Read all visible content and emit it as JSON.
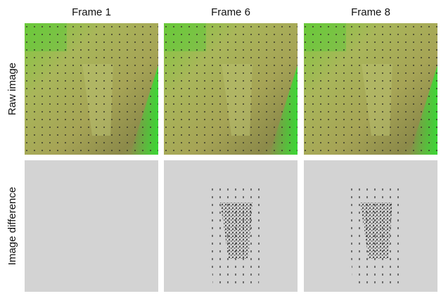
{
  "columns": [
    "Frame 1",
    "Frame 6",
    "Frame 8"
  ],
  "rows": [
    "Raw image",
    "Image difference"
  ]
}
